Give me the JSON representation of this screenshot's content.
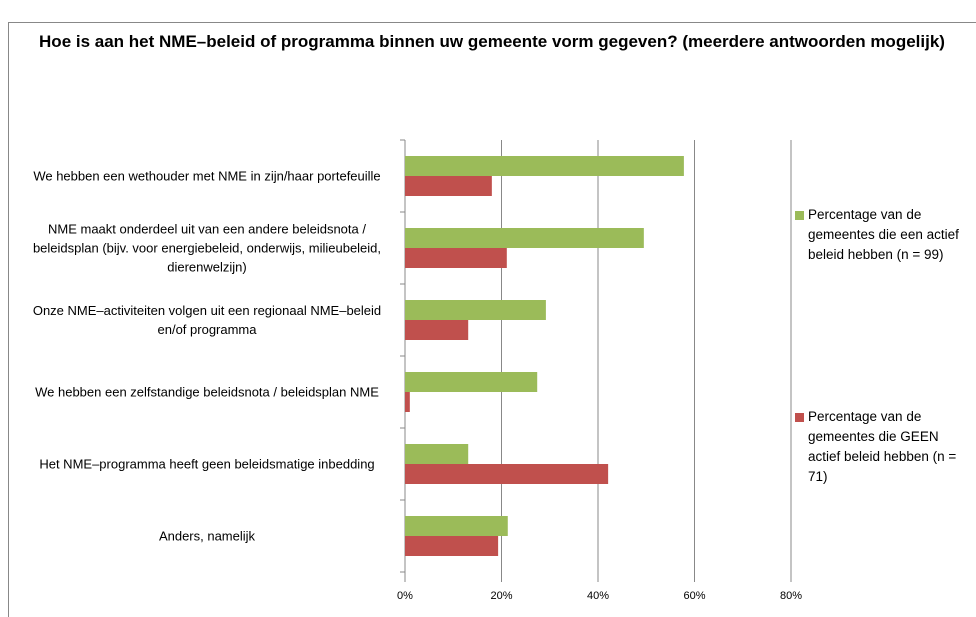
{
  "chart_data": {
    "type": "hbar",
    "title": "Hoe is aan het NME–beleid of programma binnen uw gemeente vorm gegeven? (meerdere antwoorden mogelijk)",
    "categories": [
      "We hebben een wethouder met NME in zijn/haar portefeuille",
      "NME maakt onderdeel uit van een andere beleidsnota / beleidsplan (bijv. voor energiebeleid, onderwijs, milieubeleid, dierenwelzijn)",
      "Onze NME–activiteiten volgen uit een regionaal NME–beleid en/of programma",
      "We hebben een zelfstandige beleidsnota / beleidsplan NME",
      "Het NME–programma heeft geen beleidsmatige inbedding",
      "Anders, namelijk"
    ],
    "series": [
      {
        "name": "Percentage van de gemeentes die een actief beleid hebben (n = 99)",
        "color": "#9bbb59",
        "values": [
          57.8,
          49.5,
          29.2,
          27.4,
          13.1,
          21.3
        ]
      },
      {
        "name": "Percentage van de gemeentes die GEEN actief beleid hebben (n = 71)",
        "color": "#c0504d",
        "values": [
          18.0,
          21.1,
          13.1,
          1.0,
          42.1,
          19.3
        ]
      }
    ],
    "xlim": [
      0,
      80
    ],
    "xticks": [
      {
        "value": 0,
        "label": "0%"
      },
      {
        "value": 20,
        "label": "20%"
      },
      {
        "value": 40,
        "label": "40%"
      },
      {
        "value": 60,
        "label": "60%"
      },
      {
        "value": 80,
        "label": "80%"
      }
    ],
    "grid": true,
    "legend": "right"
  }
}
